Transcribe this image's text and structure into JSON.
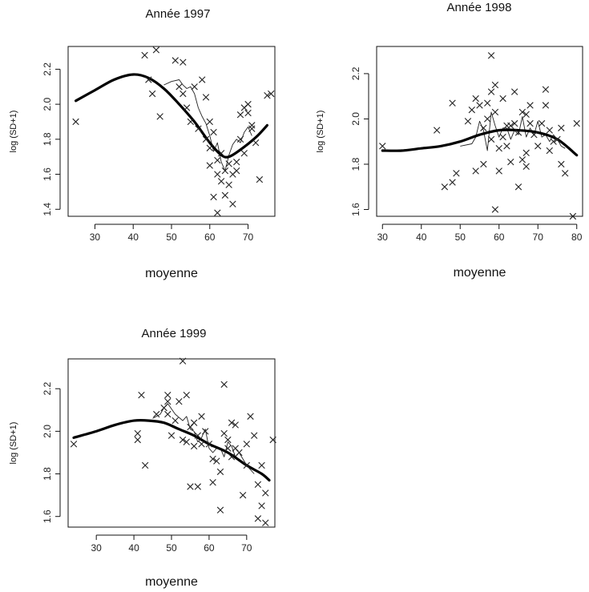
{
  "chart_data": [
    {
      "type": "scatter",
      "title": "Année 1997",
      "xlabel": "moyenne",
      "ylabel": "log (SD+1)",
      "xlim": [
        23,
        77
      ],
      "ylim": [
        1.36,
        2.33
      ],
      "xticks": [
        30,
        40,
        50,
        60,
        70
      ],
      "yticks": [
        1.4,
        1.6,
        1.8,
        2.0,
        2.2
      ],
      "xtick_labels": [
        "30",
        "40",
        "50",
        "60",
        "70"
      ],
      "ytick_labels": [
        "1.4",
        "1.6",
        "1.8",
        "2.0",
        "2.2"
      ],
      "grid": false,
      "points": [
        [
          25,
          1.9
        ],
        [
          43,
          2.28
        ],
        [
          46,
          2.31
        ],
        [
          44,
          2.14
        ],
        [
          45,
          2.06
        ],
        [
          47,
          1.93
        ],
        [
          51,
          2.25
        ],
        [
          53,
          2.24
        ],
        [
          52,
          2.1
        ],
        [
          53,
          2.06
        ],
        [
          54,
          1.98
        ],
        [
          55,
          1.9
        ],
        [
          56,
          2.1
        ],
        [
          57,
          1.86
        ],
        [
          58,
          2.14
        ],
        [
          59,
          2.04
        ],
        [
          59,
          1.8
        ],
        [
          60,
          1.9
        ],
        [
          60,
          1.75
        ],
        [
          61,
          1.84
        ],
        [
          60,
          1.65
        ],
        [
          61,
          1.47
        ],
        [
          62,
          1.6
        ],
        [
          62,
          1.68
        ],
        [
          63,
          1.72
        ],
        [
          63,
          1.56
        ],
        [
          64,
          1.62
        ],
        [
          64,
          1.48
        ],
        [
          65,
          1.66
        ],
        [
          65,
          1.54
        ],
        [
          66,
          1.43
        ],
        [
          62,
          1.38
        ],
        [
          66,
          1.6
        ],
        [
          67,
          1.62
        ],
        [
          67,
          1.67
        ],
        [
          68,
          1.8
        ],
        [
          68,
          1.94
        ],
        [
          69,
          1.72
        ],
        [
          69,
          1.98
        ],
        [
          70,
          1.95
        ],
        [
          70,
          2.0
        ],
        [
          71,
          1.86
        ],
        [
          71,
          1.88
        ],
        [
          72,
          1.78
        ],
        [
          73,
          1.57
        ],
        [
          75,
          2.05
        ],
        [
          76,
          2.06
        ]
      ],
      "smooth_line": [
        [
          25,
          2.02
        ],
        [
          30,
          2.08
        ],
        [
          35,
          2.14
        ],
        [
          40,
          2.17
        ],
        [
          44,
          2.15
        ],
        [
          48,
          2.09
        ],
        [
          52,
          2.0
        ],
        [
          56,
          1.9
        ],
        [
          60,
          1.78
        ],
        [
          63,
          1.71
        ],
        [
          65,
          1.7
        ],
        [
          68,
          1.74
        ],
        [
          72,
          1.81
        ],
        [
          75,
          1.88
        ]
      ],
      "local_line": [
        [
          48,
          2.11
        ],
        [
          50,
          2.13
        ],
        [
          52,
          2.14
        ],
        [
          53,
          2.11
        ],
        [
          54,
          2.09
        ],
        [
          55,
          2.1
        ],
        [
          56,
          2.06
        ],
        [
          57,
          1.98
        ],
        [
          58,
          1.93
        ],
        [
          59,
          1.89
        ],
        [
          60,
          1.82
        ],
        [
          61,
          1.73
        ],
        [
          62,
          1.78
        ],
        [
          63,
          1.67
        ],
        [
          64,
          1.62
        ],
        [
          65,
          1.71
        ],
        [
          66,
          1.77
        ],
        [
          67,
          1.8
        ],
        [
          68,
          1.78
        ],
        [
          69,
          1.84
        ],
        [
          70,
          1.87
        ],
        [
          71,
          1.82
        ]
      ]
    },
    {
      "type": "scatter",
      "title": "Année 1998",
      "xlabel": "moyenne",
      "ylabel": "log (SD+1)",
      "xlim": [
        28.5,
        81.5
      ],
      "ylim": [
        1.57,
        2.32
      ],
      "xticks": [
        30,
        40,
        50,
        60,
        70,
        80
      ],
      "yticks": [
        1.6,
        1.8,
        2.0,
        2.2
      ],
      "xtick_labels": [
        "30",
        "40",
        "50",
        "60",
        "70",
        "80"
      ],
      "ytick_labels": [
        "1.6",
        "1.8",
        "2.0",
        "2.2"
      ],
      "grid": false,
      "points": [
        [
          30,
          1.88
        ],
        [
          44,
          1.95
        ],
        [
          46,
          1.7
        ],
        [
          48,
          1.72
        ],
        [
          48,
          2.07
        ],
        [
          49,
          1.76
        ],
        [
          52,
          1.99
        ],
        [
          53,
          2.04
        ],
        [
          54,
          1.77
        ],
        [
          54,
          2.09
        ],
        [
          55,
          2.06
        ],
        [
          56,
          1.96
        ],
        [
          56,
          1.8
        ],
        [
          57,
          2.0
        ],
        [
          57,
          2.07
        ],
        [
          58,
          2.28
        ],
        [
          58,
          1.91
        ],
        [
          58,
          2.12
        ],
        [
          59,
          2.15
        ],
        [
          59,
          2.03
        ],
        [
          59,
          1.6
        ],
        [
          60,
          1.87
        ],
        [
          60,
          1.77
        ],
        [
          61,
          1.92
        ],
        [
          61,
          2.09
        ],
        [
          62,
          1.97
        ],
        [
          62,
          1.88
        ],
        [
          63,
          1.97
        ],
        [
          63,
          1.81
        ],
        [
          64,
          2.12
        ],
        [
          64,
          1.98
        ],
        [
          65,
          1.7
        ],
        [
          65,
          1.94
        ],
        [
          66,
          1.82
        ],
        [
          66,
          2.03
        ],
        [
          67,
          1.79
        ],
        [
          67,
          2.02
        ],
        [
          67,
          1.85
        ],
        [
          68,
          2.06
        ],
        [
          68,
          1.98
        ],
        [
          69,
          1.93
        ],
        [
          70,
          1.88
        ],
        [
          71,
          1.98
        ],
        [
          72,
          2.13
        ],
        [
          72,
          2.06
        ],
        [
          73,
          1.86
        ],
        [
          73,
          1.95
        ],
        [
          74,
          1.9
        ],
        [
          75,
          1.91
        ],
        [
          76,
          1.96
        ],
        [
          76,
          1.8
        ],
        [
          77,
          1.76
        ],
        [
          79,
          1.57
        ],
        [
          80,
          1.98
        ]
      ],
      "smooth_line": [
        [
          30,
          1.86
        ],
        [
          35,
          1.86
        ],
        [
          40,
          1.87
        ],
        [
          45,
          1.88
        ],
        [
          50,
          1.9
        ],
        [
          55,
          1.93
        ],
        [
          60,
          1.95
        ],
        [
          65,
          1.95
        ],
        [
          70,
          1.94
        ],
        [
          75,
          1.91
        ],
        [
          80,
          1.84
        ]
      ],
      "local_line": [
        [
          50,
          1.88
        ],
        [
          53,
          1.89
        ],
        [
          54,
          1.92
        ],
        [
          55,
          1.99
        ],
        [
          56,
          1.95
        ],
        [
          57,
          1.86
        ],
        [
          58,
          2.03
        ],
        [
          59,
          1.97
        ],
        [
          60,
          1.92
        ],
        [
          61,
          1.96
        ],
        [
          62,
          1.96
        ],
        [
          63,
          1.91
        ],
        [
          64,
          1.95
        ],
        [
          65,
          1.93
        ],
        [
          66,
          2.01
        ],
        [
          67,
          1.92
        ],
        [
          68,
          1.96
        ],
        [
          69,
          1.93
        ],
        [
          70,
          1.99
        ],
        [
          71,
          1.92
        ],
        [
          72,
          1.93
        ],
        [
          73,
          1.9
        ],
        [
          74,
          1.93
        ],
        [
          75,
          1.91
        ],
        [
          76,
          1.88
        ],
        [
          77,
          1.87
        ]
      ]
    },
    {
      "type": "scatter",
      "title": "Année 1999",
      "xlabel": "moyenne",
      "ylabel": "log (SD+1)",
      "xlim": [
        22.5,
        77.5
      ],
      "ylim": [
        1.55,
        2.34
      ],
      "xticks": [
        30,
        40,
        50,
        60,
        70
      ],
      "yticks": [
        1.6,
        1.8,
        2.0,
        2.2
      ],
      "xtick_labels": [
        "30",
        "40",
        "50",
        "60",
        "70"
      ],
      "ytick_labels": [
        "1.6",
        "1.8",
        "2.0",
        "2.2"
      ],
      "grid": false,
      "points": [
        [
          24,
          1.94
        ],
        [
          41,
          1.99
        ],
        [
          41,
          1.96
        ],
        [
          42,
          2.17
        ],
        [
          43,
          1.84
        ],
        [
          46,
          2.08
        ],
        [
          48,
          2.11
        ],
        [
          49,
          2.08
        ],
        [
          49,
          2.14
        ],
        [
          49,
          2.17
        ],
        [
          50,
          1.98
        ],
        [
          51,
          2.05
        ],
        [
          52,
          2.14
        ],
        [
          53,
          2.33
        ],
        [
          53,
          1.96
        ],
        [
          54,
          2.17
        ],
        [
          54,
          1.95
        ],
        [
          55,
          2.02
        ],
        [
          55,
          1.74
        ],
        [
          56,
          2.04
        ],
        [
          56,
          1.93
        ],
        [
          57,
          1.74
        ],
        [
          57,
          1.98
        ],
        [
          58,
          1.94
        ],
        [
          58,
          2.07
        ],
        [
          59,
          2.0
        ],
        [
          60,
          1.94
        ],
        [
          61,
          1.87
        ],
        [
          61,
          1.76
        ],
        [
          62,
          1.86
        ],
        [
          63,
          1.81
        ],
        [
          63,
          1.63
        ],
        [
          64,
          2.22
        ],
        [
          64,
          1.99
        ],
        [
          65,
          1.92
        ],
        [
          65,
          1.96
        ],
        [
          66,
          2.04
        ],
        [
          66,
          1.88
        ],
        [
          67,
          2.03
        ],
        [
          67,
          1.92
        ],
        [
          68,
          1.9
        ],
        [
          69,
          1.7
        ],
        [
          70,
          1.94
        ],
        [
          70,
          1.84
        ],
        [
          71,
          2.07
        ],
        [
          72,
          1.98
        ],
        [
          73,
          1.75
        ],
        [
          73,
          1.59
        ],
        [
          74,
          1.84
        ],
        [
          74,
          1.65
        ],
        [
          75,
          1.71
        ],
        [
          75,
          1.57
        ],
        [
          77,
          1.96
        ]
      ],
      "smooth_line": [
        [
          24,
          1.97
        ],
        [
          30,
          2.0
        ],
        [
          35,
          2.03
        ],
        [
          40,
          2.05
        ],
        [
          44,
          2.05
        ],
        [
          48,
          2.04
        ],
        [
          52,
          2.01
        ],
        [
          56,
          1.98
        ],
        [
          60,
          1.94
        ],
        [
          65,
          1.9
        ],
        [
          70,
          1.84
        ],
        [
          74,
          1.8
        ],
        [
          76,
          1.77
        ]
      ],
      "local_line": [
        [
          45,
          2.06
        ],
        [
          47,
          2.08
        ],
        [
          48,
          2.11
        ],
        [
          49,
          2.13
        ],
        [
          51,
          2.08
        ],
        [
          53,
          2.05
        ],
        [
          54,
          2.07
        ],
        [
          55,
          2.01
        ],
        [
          56,
          2.0
        ],
        [
          57,
          1.95
        ],
        [
          58,
          1.97
        ],
        [
          59,
          2.01
        ],
        [
          60,
          1.92
        ],
        [
          61,
          1.9
        ],
        [
          62,
          1.92
        ],
        [
          63,
          1.92
        ],
        [
          64,
          1.88
        ],
        [
          65,
          1.95
        ],
        [
          66,
          1.93
        ],
        [
          67,
          1.88
        ],
        [
          68,
          1.9
        ],
        [
          70,
          1.84
        ],
        [
          72,
          1.8
        ]
      ]
    }
  ]
}
